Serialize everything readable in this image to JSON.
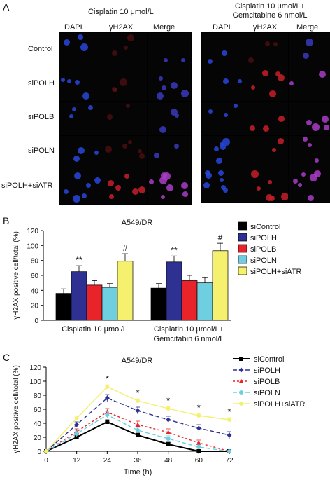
{
  "panelA": {
    "letter": "A",
    "group1_title": "Cisplatin 10 μmol/L",
    "group2_title_line1": "Cisplatin 10 μmol/L+",
    "group2_title_line2": "Gemcitabine 6 nmol/L",
    "columns": [
      "DAPI",
      "γH2AX",
      "Merge"
    ],
    "rows": [
      "Control",
      "siPOLH",
      "siPOLB",
      "siPOLN",
      "siPOLH+siATR"
    ]
  },
  "panelB": {
    "letter": "B",
    "title": "A549/DR",
    "ylabel": "γH2AX positive cell/total (%)",
    "group1_label": "Cisplatin 10 μmol/L",
    "group2_label_line1": "Cisplatin 10 μmol/L+",
    "group2_label_line2": "Gemcitabin 6 nmol/L",
    "legend": [
      "siControl",
      "siPOLH",
      "siPOLB",
      "siPOLN",
      "siPOLH+siATR"
    ]
  },
  "panelC": {
    "letter": "C",
    "title": "A549/DR",
    "ylabel": "γH2AX positive cell/total (%)",
    "xlabel": "Time (h)",
    "legend": [
      "siControl",
      "siPOLH",
      "siPOLB",
      "siPOLN",
      "siPOLH+siATR"
    ]
  },
  "colors": {
    "siControl": "#000000",
    "siPOLH": "#2e3192",
    "siPOLB": "#e8232a",
    "siPOLN": "#6ecfe0",
    "siPOLH_siATR": "#f5f06e"
  },
  "chart_data": [
    {
      "type": "bar",
      "title": "A549/DR",
      "ylabel": "γH2AX positive cell/total (%)",
      "ylim": [
        0,
        120
      ],
      "yticks": [
        "0",
        "20",
        "40",
        "60",
        "80",
        "100",
        "120"
      ],
      "categories": [
        "Cisplatin 10 μmol/L",
        "Cisplatin 10 μmol/L+ Gemcitabin 6 nmol/L"
      ],
      "series": [
        {
          "name": "siControl",
          "values": [
            36,
            43
          ],
          "errors": [
            6,
            6
          ]
        },
        {
          "name": "siPOLH",
          "values": [
            65,
            78
          ],
          "errors": [
            8,
            8
          ]
        },
        {
          "name": "siPOLB",
          "values": [
            47,
            53
          ],
          "errors": [
            6,
            7
          ]
        },
        {
          "name": "siPOLN",
          "values": [
            44,
            50
          ],
          "errors": [
            5,
            7
          ]
        },
        {
          "name": "siPOLH+siATR",
          "values": [
            79,
            93
          ],
          "errors": [
            10,
            10
          ]
        }
      ],
      "annotations": [
        {
          "series": "siPOLH",
          "category": 0,
          "text": "**"
        },
        {
          "series": "siPOLH+siATR",
          "category": 0,
          "text": "#"
        },
        {
          "series": "siPOLH",
          "category": 1,
          "text": "**"
        },
        {
          "series": "siPOLH+siATR",
          "category": 1,
          "text": "#"
        }
      ],
      "legend_position": "right"
    },
    {
      "type": "line",
      "title": "A549/DR",
      "xlabel": "Time (h)",
      "ylabel": "γH2AX positive cell/total (%)",
      "x": [
        0,
        12,
        24,
        36,
        48,
        60,
        72
      ],
      "xlim": [
        0,
        72
      ],
      "ylim": [
        0,
        120
      ],
      "yticks": [
        "0",
        "20",
        "40",
        "60",
        "80",
        "100",
        "120"
      ],
      "xticks": [
        "0",
        "12",
        "24",
        "36",
        "48",
        "60",
        "72"
      ],
      "series": [
        {
          "name": "siControl",
          "values": [
            0,
            20,
            42,
            23,
            10,
            0,
            0
          ],
          "errors": [
            0,
            3,
            3,
            3,
            3,
            0,
            0
          ]
        },
        {
          "name": "siPOLH",
          "values": [
            0,
            38,
            76,
            58,
            45,
            33,
            23
          ],
          "errors": [
            0,
            4,
            5,
            5,
            5,
            5,
            5
          ]
        },
        {
          "name": "siPOLB",
          "values": [
            0,
            28,
            56,
            38,
            27,
            12,
            0
          ],
          "errors": [
            0,
            4,
            5,
            5,
            5,
            4,
            0
          ]
        },
        {
          "name": "siPOLN",
          "values": [
            0,
            25,
            52,
            30,
            18,
            6,
            0
          ],
          "errors": [
            0,
            4,
            5,
            4,
            4,
            3,
            0
          ]
        },
        {
          "name": "siPOLH+siATR",
          "values": [
            0,
            47,
            92,
            72,
            61,
            51,
            45
          ],
          "errors": [
            0,
            3,
            3,
            3,
            3,
            3,
            3
          ]
        }
      ],
      "annotations": [
        {
          "x": 24,
          "text": "*"
        },
        {
          "x": 36,
          "text": "*"
        },
        {
          "x": 48,
          "text": "*"
        },
        {
          "x": 60,
          "text": "*"
        },
        {
          "x": 72,
          "text": "*"
        }
      ],
      "legend_position": "right"
    }
  ]
}
